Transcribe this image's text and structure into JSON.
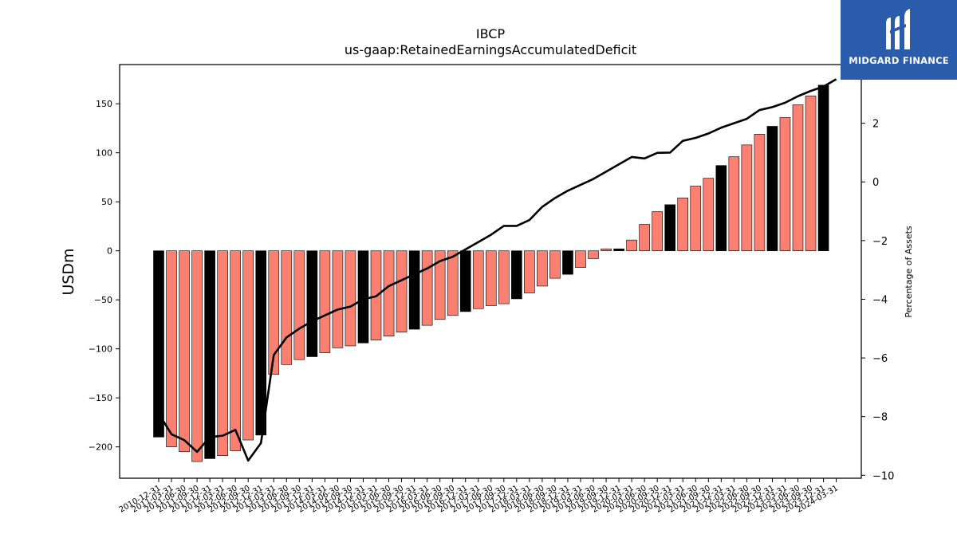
{
  "brand": {
    "name": "MIDGARD FINANCE",
    "icon": "midgard-m-logo-icon",
    "color": "#2b5bab"
  },
  "chart_data": {
    "type": "bar",
    "title": "IBCP",
    "subtitle": "us-gaap:RetainedEarningsAccumulatedDeficit",
    "ylabel": "USDm",
    "y2label": "Percentage of Assets",
    "ylim": [
      -232,
      190
    ],
    "y2lim": [
      -10.1,
      4.0
    ],
    "yticks": [
      -200,
      -150,
      -100,
      -50,
      0,
      50,
      100,
      150
    ],
    "y2ticks": [
      -10,
      -8,
      -6,
      -4,
      -2,
      0,
      2
    ],
    "grid": false,
    "categories": [
      "2010-12-31",
      "2011-03-31",
      "2011-06-30",
      "2011-09-30",
      "2011-12-31",
      "2012-03-31",
      "2012-06-30",
      "2012-09-30",
      "2012-12-31",
      "2013-03-31",
      "2013-06-30",
      "2013-09-30",
      "2013-12-31",
      "2014-03-31",
      "2014-06-30",
      "2014-09-30",
      "2014-12-31",
      "2015-03-31",
      "2015-06-30",
      "2015-09-30",
      "2015-12-31",
      "2016-03-31",
      "2016-06-30",
      "2016-09-30",
      "2016-12-31",
      "2017-03-31",
      "2017-06-30",
      "2017-09-30",
      "2017-12-31",
      "2018-03-31",
      "2018-06-30",
      "2018-09-30",
      "2018-12-31",
      "2019-03-31",
      "2019-06-30",
      "2019-09-30",
      "2019-12-31",
      "2020-03-31",
      "2020-06-30",
      "2020-09-30",
      "2020-12-31",
      "2021-03-31",
      "2021-06-30",
      "2021-09-30",
      "2021-12-31",
      "2022-03-31",
      "2022-06-30",
      "2022-09-30",
      "2022-12-31",
      "2023-03-31",
      "2023-06-30",
      "2023-09-30",
      "2023-12-31",
      "2024-03-31"
    ],
    "series": [
      {
        "type": "bar",
        "values": [
          -190,
          -200,
          -205,
          -215,
          -212,
          -209,
          -204,
          -193,
          -188,
          -126,
          -116,
          -111,
          -108,
          -104,
          -99,
          -97,
          -94,
          -91,
          -87,
          -83,
          -80,
          -76,
          -70,
          -66,
          -62,
          -59,
          -56,
          -54,
          -49,
          -43,
          -36,
          -28,
          -24,
          -17,
          -8,
          2,
          2,
          11,
          27,
          40,
          47,
          54,
          66,
          74,
          87,
          96,
          108,
          119,
          127,
          136,
          149,
          158,
          169,
          null
        ]
      },
      {
        "type": "line",
        "axis": "right",
        "values": [
          -7.9,
          -8.6,
          -8.8,
          -9.2,
          -8.7,
          -8.65,
          -8.45,
          -9.5,
          -8.9,
          -5.9,
          -5.3,
          -5.0,
          -4.75,
          -4.55,
          -4.35,
          -4.25,
          -4.0,
          -3.9,
          -3.55,
          -3.35,
          -3.15,
          -2.95,
          -2.7,
          -2.55,
          -2.3,
          -2.05,
          -1.8,
          -1.5,
          -1.5,
          -1.3,
          -0.85,
          -0.55,
          -0.3,
          -0.1,
          0.1,
          0.35,
          0.6,
          0.85,
          0.8,
          0.99,
          1.0,
          1.4,
          1.5,
          1.65,
          1.85,
          2.0,
          2.15,
          2.45,
          2.55,
          2.7,
          2.92,
          3.1,
          3.25,
          3.5
        ]
      }
    ],
    "bar_colors": {
      "default": "#fa8072",
      "year_end": "#000000",
      "edge": "#000000"
    },
    "line_color": "#000000"
  }
}
